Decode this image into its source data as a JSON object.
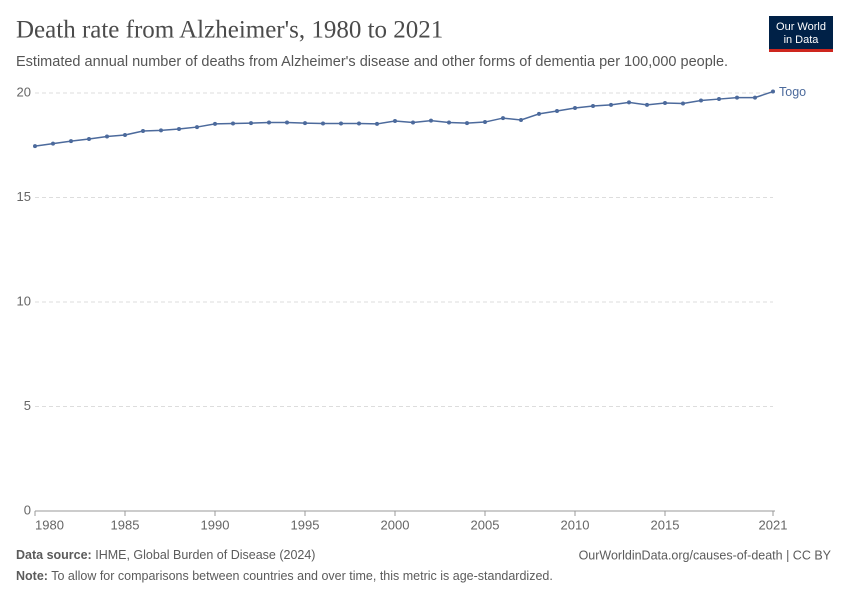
{
  "chart_data": {
    "type": "line",
    "title": "Death rate from Alzheimer's, 1980 to 2021",
    "subtitle": "Estimated annual number of deaths from Alzheimer's disease and other forms of dementia per 100,000 people.",
    "x": [
      1980,
      1981,
      1982,
      1983,
      1984,
      1985,
      1986,
      1987,
      1988,
      1989,
      1990,
      1991,
      1992,
      1993,
      1994,
      1995,
      1996,
      1997,
      1998,
      1999,
      2000,
      2001,
      2002,
      2003,
      2004,
      2005,
      2006,
      2007,
      2008,
      2009,
      2010,
      2011,
      2012,
      2013,
      2014,
      2015,
      2016,
      2017,
      2018,
      2019,
      2020,
      2021
    ],
    "series": [
      {
        "name": "Togo",
        "color": "#4c6a9c",
        "values": [
          17.46,
          17.58,
          17.7,
          17.8,
          17.92,
          17.99,
          18.18,
          18.21,
          18.28,
          18.37,
          18.52,
          18.54,
          18.56,
          18.59,
          18.59,
          18.56,
          18.54,
          18.54,
          18.54,
          18.52,
          18.66,
          18.59,
          18.68,
          18.59,
          18.56,
          18.61,
          18.8,
          18.71,
          19.0,
          19.14,
          19.28,
          19.38,
          19.43,
          19.55,
          19.43,
          19.52,
          19.5,
          19.64,
          19.71,
          19.78,
          19.78,
          20.07
        ]
      }
    ],
    "xlim": [
      1980,
      2021
    ],
    "xticks": [
      1980,
      1985,
      1990,
      1995,
      2000,
      2005,
      2010,
      2015,
      2021
    ],
    "ylim": [
      0,
      20
    ],
    "yticks": [
      0,
      5,
      10,
      15,
      20
    ],
    "grid": true,
    "source_label": "Data source:",
    "source": "IHME, Global Burden of Disease (2024)",
    "url": "OurWorldinData.org/causes-of-death | CC BY",
    "note_label": "Note:",
    "note": "To allow for comparisons between countries and over time, this metric is age-standardized."
  },
  "logo": [
    "Our World",
    "in Data"
  ]
}
